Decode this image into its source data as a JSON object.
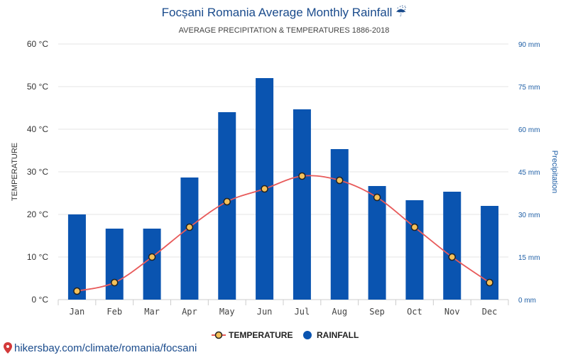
{
  "header": {
    "title": "Focșani Romania Average Monthly Rainfall ☔",
    "subtitle": "AVERAGE PRECIPITATION & TEMPERATURES 1886-2018"
  },
  "footer": {
    "link_text": "hikersbay.com/climate/romania/focsani"
  },
  "legend": {
    "temperature_label": "TEMPERATURE",
    "rainfall_label": "RAINFALL"
  },
  "colors": {
    "bar": "#0a54b0",
    "line": "#e85a5a",
    "marker_fill": "#f5c15a",
    "marker_stroke": "#222222"
  },
  "chart_data": {
    "type": "bar",
    "title": "Focșani Romania Average Monthly Rainfall ☔",
    "subtitle": "AVERAGE PRECIPITATION & TEMPERATURES 1886-2018",
    "categories": [
      "Jan",
      "Feb",
      "Mar",
      "Apr",
      "May",
      "Jun",
      "Jul",
      "Aug",
      "Sep",
      "Oct",
      "Nov",
      "Dec"
    ],
    "y_left": {
      "label": "TEMPERATURE",
      "lim": [
        0,
        60
      ],
      "ticks": [
        0,
        10,
        20,
        30,
        40,
        50,
        60
      ],
      "tick_labels": [
        "0 °C",
        "10 °C",
        "20 °C",
        "30 °C",
        "40 °C",
        "50 °C",
        "60 °C"
      ]
    },
    "y_right": {
      "label": "Precipitation",
      "lim": [
        0,
        90
      ],
      "ticks": [
        0,
        15,
        30,
        45,
        60,
        75,
        90
      ],
      "tick_labels": [
        "0 mm",
        "15 mm",
        "30 mm",
        "45 mm",
        "60 mm",
        "75 mm",
        "90 mm"
      ]
    },
    "grid": true,
    "legend_position": "bottom-center",
    "series": [
      {
        "name": "RAINFALL",
        "type": "bar",
        "axis": "right",
        "values": [
          30,
          25,
          25,
          43,
          66,
          78,
          67,
          53,
          40,
          35,
          38,
          33
        ]
      },
      {
        "name": "TEMPERATURE",
        "type": "line",
        "axis": "left",
        "values": [
          2,
          4,
          10,
          17,
          23,
          26,
          29,
          28,
          24,
          17,
          10,
          4
        ]
      }
    ]
  }
}
